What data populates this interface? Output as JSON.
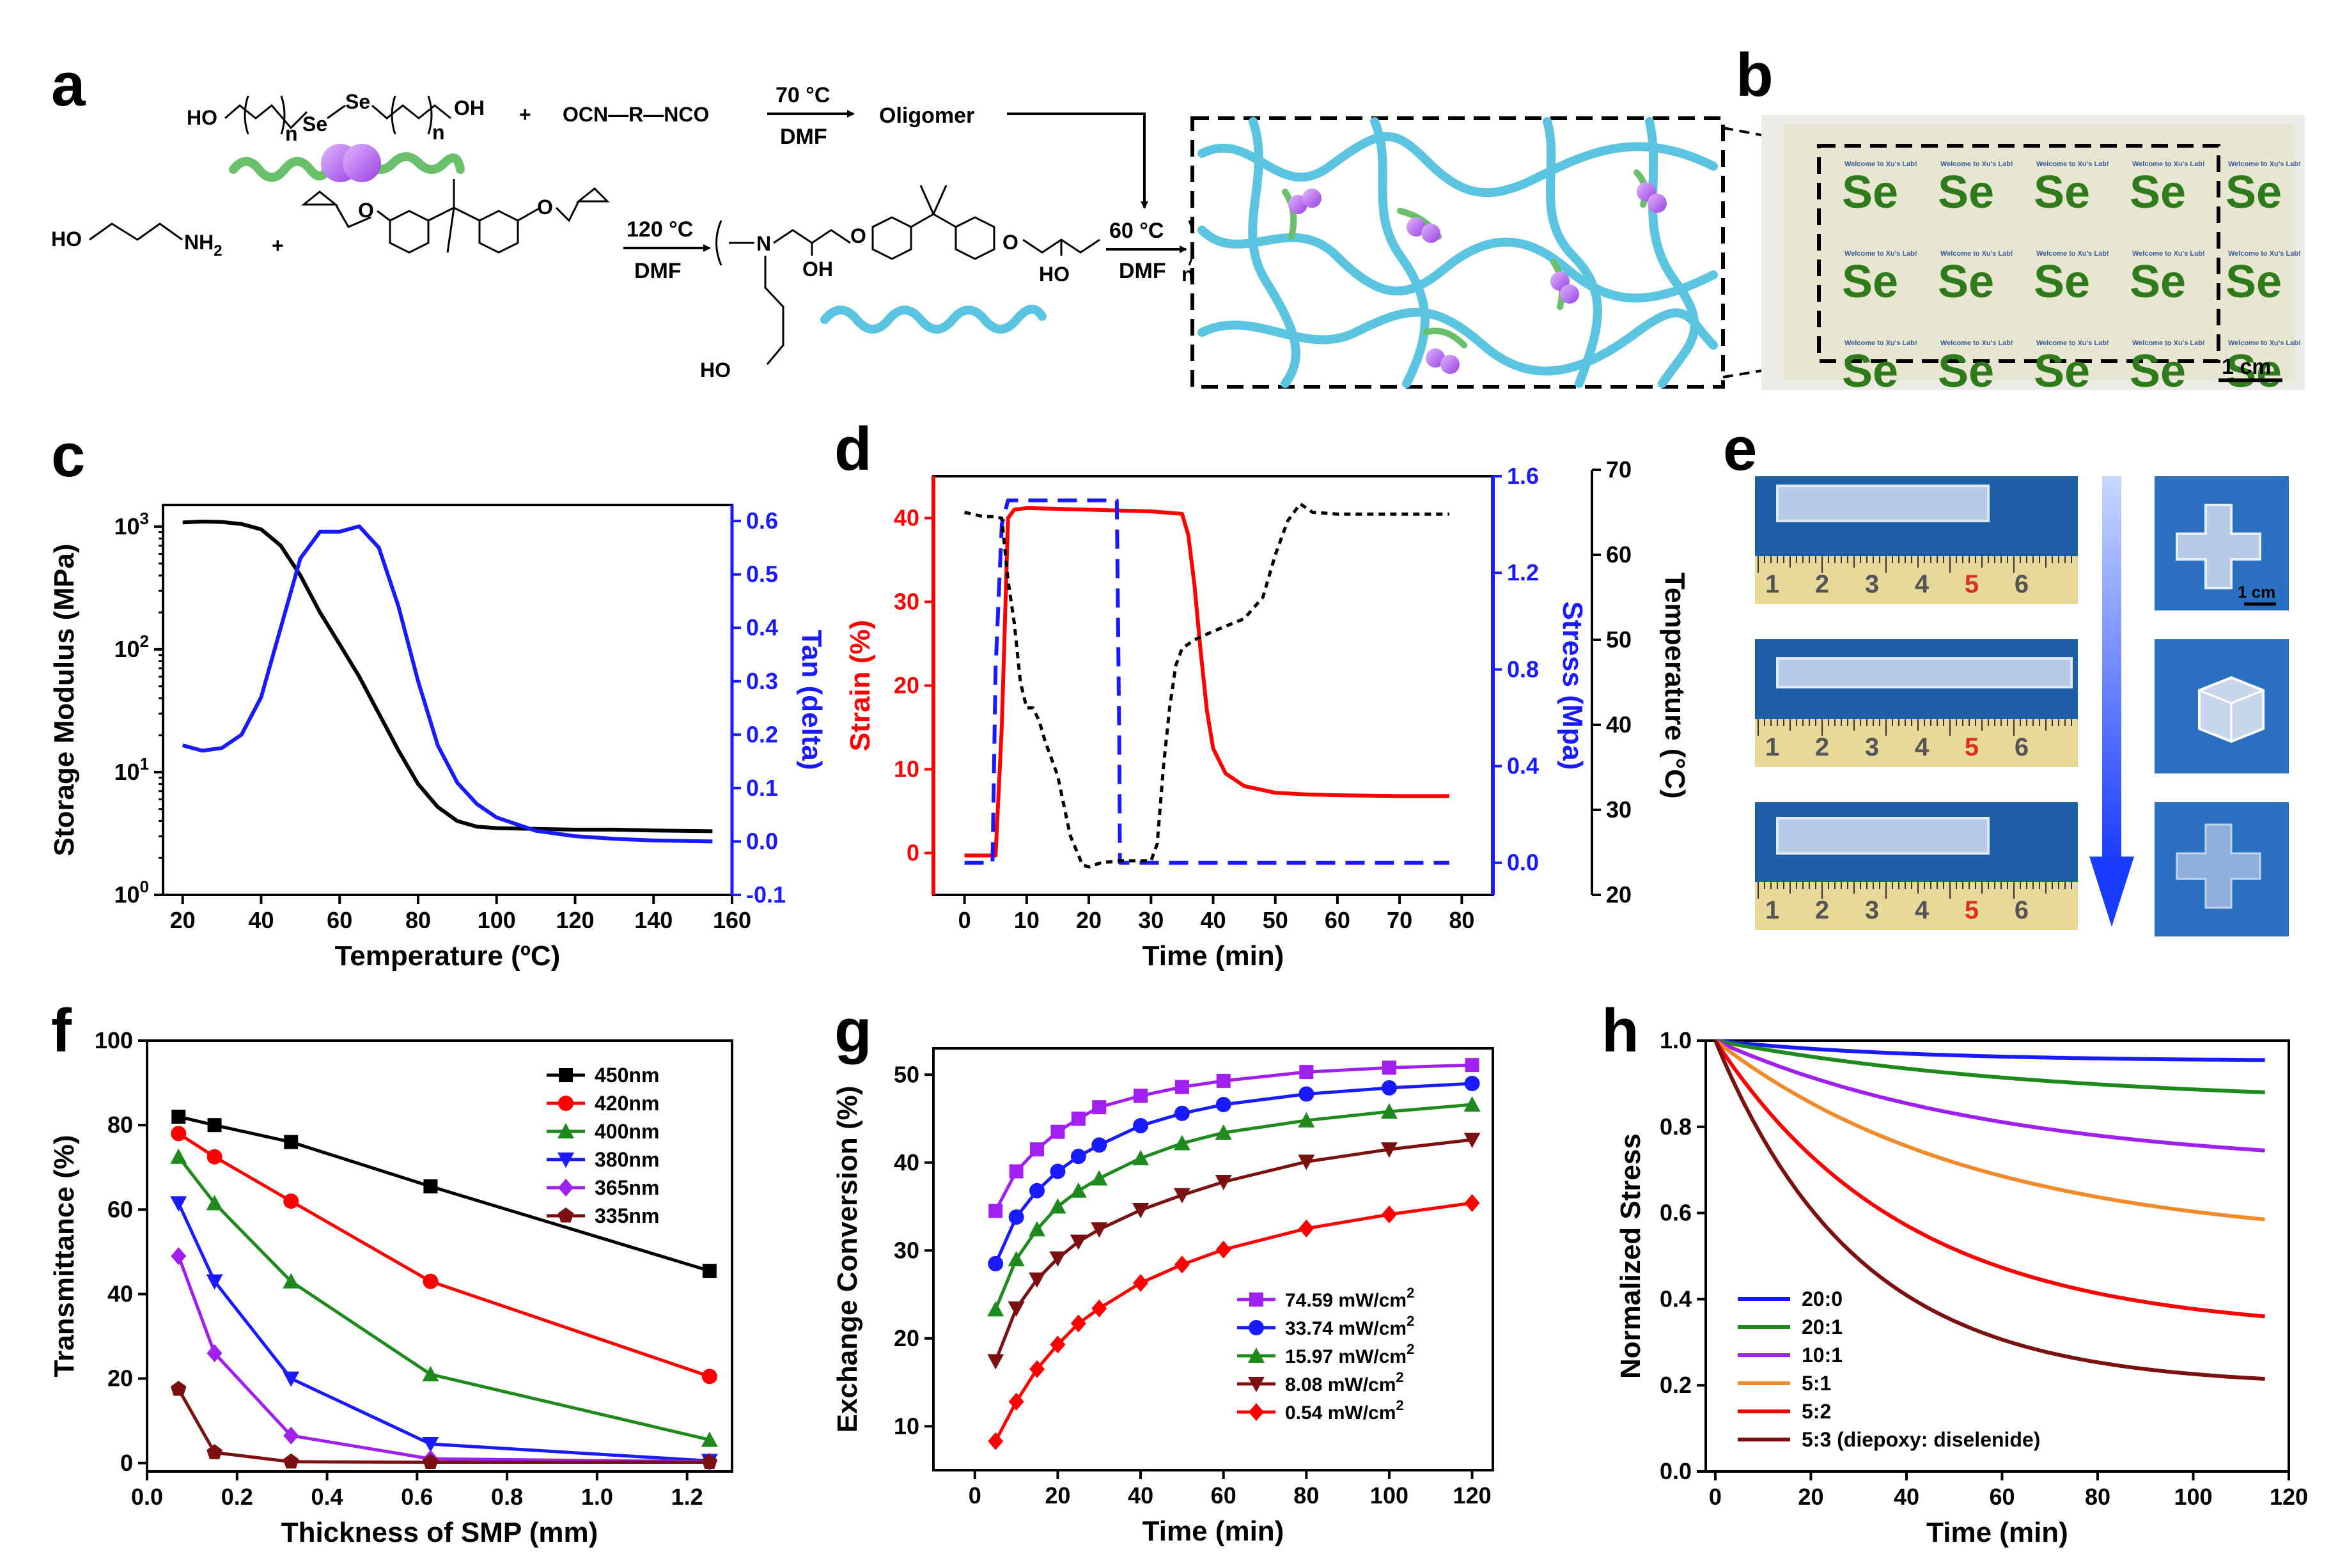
{
  "panels": {
    "a": "a",
    "b": "b",
    "c": "c",
    "d": "d",
    "e": "e",
    "f": "f",
    "g": "g",
    "h": "h"
  },
  "scheme": {
    "diol_left": "HO",
    "diol_n1": "n",
    "diol_se1": "Se",
    "diol_se2": "Se",
    "diol_n2": "n",
    "diol_right": "OH",
    "plus1": "+",
    "isocyanate": "OCN—R—NCO",
    "cond1_temp": "70 °C",
    "cond1_solv": "DMF",
    "oligomer": "Oligomer",
    "amine_ho": "HO",
    "amine_nh2": "NH",
    "amine_sub": "2",
    "plus2": "+",
    "cond2_temp": "120 °C",
    "cond2_solv": "DMF",
    "poly_n_atom": "N",
    "poly_oh1": "OH",
    "poly_oh2": "HO",
    "poly_ho_tail": "HO",
    "poly_n": "n",
    "cond3_temp": "60 °C",
    "cond3_solv": "DMF"
  },
  "photo_b": {
    "label_text": "Welcome to Xu's Lab!",
    "logo_text": "Se",
    "scale": "1 cm"
  },
  "photo_e": {
    "ruler_digits": [
      "1",
      "2",
      "3",
      "4",
      "5",
      "6"
    ],
    "scale": "1 cm"
  },
  "colors": {
    "black": "#000000",
    "red": "#ff0000",
    "blue": "#1a1aff",
    "green": "#1e8a1e",
    "purple": "#a020f0",
    "orange": "#f08a2a",
    "brown": "#7a1010",
    "network": "#5bc4e0",
    "crosslink": "#6ac06a",
    "sphere": "#b66ee8"
  },
  "chart_data": [
    {
      "id": "c",
      "type": "line",
      "xlabel": "Temperature (ºC)",
      "ylabel": "Storage Modulus (MPa)",
      "y2label": "Tan (delta)",
      "xlim": [
        15,
        160
      ],
      "xticks": [
        "20",
        "40",
        "60",
        "80",
        "100",
        "120",
        "140",
        "160"
      ],
      "yscale": "log",
      "ylim": [
        1,
        1500
      ],
      "yticks": [
        {
          "base": "10",
          "exp": "0"
        },
        {
          "base": "10",
          "exp": "1"
        },
        {
          "base": "10",
          "exp": "2"
        },
        {
          "base": "10",
          "exp": "3"
        }
      ],
      "y2lim": [
        -0.1,
        0.63
      ],
      "y2ticks": [
        "-0.1",
        "0.0",
        "0.1",
        "0.2",
        "0.3",
        "0.4",
        "0.5",
        "0.6"
      ],
      "series": [
        {
          "axis": "y",
          "color": "black",
          "x": [
            20,
            25,
            30,
            35,
            40,
            45,
            50,
            55,
            60,
            65,
            70,
            75,
            80,
            85,
            90,
            95,
            100,
            110,
            120,
            130,
            140,
            155
          ],
          "y": [
            1080,
            1100,
            1090,
            1050,
            950,
            700,
            400,
            200,
            110,
            60,
            30,
            15,
            8,
            5.2,
            4.0,
            3.6,
            3.5,
            3.45,
            3.4,
            3.4,
            3.35,
            3.3
          ]
        },
        {
          "axis": "y2",
          "color": "blue",
          "x": [
            20,
            25,
            30,
            35,
            40,
            45,
            50,
            55,
            60,
            65,
            70,
            75,
            80,
            85,
            90,
            95,
            100,
            110,
            120,
            130,
            140,
            155
          ],
          "y": [
            0.18,
            0.17,
            0.175,
            0.2,
            0.27,
            0.4,
            0.53,
            0.58,
            0.58,
            0.59,
            0.55,
            0.44,
            0.3,
            0.18,
            0.11,
            0.07,
            0.045,
            0.02,
            0.01,
            0.005,
            0.002,
            0.0
          ]
        }
      ]
    },
    {
      "id": "d",
      "type": "line",
      "xlabel": "Time (min)",
      "ylabel": "Strain (%)",
      "y2label": "Stress (Mpa)",
      "y3label": "Temperature (°C)",
      "xlim": [
        -5,
        85
      ],
      "xticks": [
        "0",
        "10",
        "20",
        "30",
        "40",
        "50",
        "60",
        "70",
        "80"
      ],
      "ylim": [
        -5,
        45
      ],
      "yticks": [
        "0",
        "10",
        "20",
        "30",
        "40"
      ],
      "y2lim": [
        -0.133,
        1.6
      ],
      "y2ticks": [
        "0.0",
        "0.4",
        "0.8",
        "1.2",
        "1.6"
      ],
      "y3lim": [
        20,
        70
      ],
      "y3ticks": [
        "20",
        "30",
        "40",
        "50",
        "60",
        "70"
      ],
      "series": [
        {
          "axis": "y",
          "color": "red",
          "style": "solid",
          "x": [
            0,
            5,
            6,
            7,
            8,
            10,
            15,
            20,
            25,
            30,
            35,
            36,
            37,
            38,
            39,
            40,
            42,
            45,
            50,
            55,
            60,
            70,
            78
          ],
          "y": [
            -0.3,
            -0.3,
            15,
            40,
            41,
            41.2,
            41.1,
            41,
            40.9,
            40.8,
            40.5,
            38,
            32,
            24,
            17,
            12.5,
            9.5,
            8,
            7.2,
            7,
            6.9,
            6.8,
            6.8
          ]
        },
        {
          "axis": "y2",
          "color": "blue",
          "style": "dashed",
          "x": [
            0,
            4.5,
            5,
            6,
            7,
            10,
            20,
            24.5,
            24.9,
            25,
            30,
            40,
            50,
            60,
            70,
            78
          ],
          "y": [
            0,
            0,
            0.8,
            1.4,
            1.5,
            1.5,
            1.5,
            1.5,
            0.5,
            0,
            0,
            0,
            0,
            0,
            0,
            0
          ]
        },
        {
          "axis": "y3",
          "color": "black",
          "style": "dotted",
          "x": [
            0,
            3,
            5,
            6,
            7,
            8,
            9,
            10,
            11,
            12,
            13,
            15,
            17,
            19,
            20,
            22,
            25,
            28,
            30,
            31,
            32,
            33,
            34,
            35,
            37,
            40,
            45,
            48,
            50,
            52,
            54,
            56,
            60,
            70,
            78
          ],
          "y": [
            65,
            64.5,
            64.5,
            64.3,
            57,
            52,
            45,
            42,
            42,
            40.5,
            38,
            34,
            27,
            23.5,
            23.3,
            23.8,
            24,
            24,
            24,
            26,
            35,
            42,
            47,
            49,
            50,
            51,
            52.5,
            55,
            60,
            64,
            66,
            65,
            64.8,
            64.8,
            64.8
          ]
        }
      ]
    },
    {
      "id": "f",
      "type": "line",
      "xlabel": "Thickness of SMP (mm)",
      "ylabel": "Transmittance (%)",
      "xlim": [
        0,
        1.3
      ],
      "xticks": [
        "0.0",
        "0.2",
        "0.4",
        "0.6",
        "0.8",
        "1.0",
        "1.2"
      ],
      "ylim": [
        -2,
        100
      ],
      "yticks": [
        "0",
        "20",
        "40",
        "60",
        "80",
        "100"
      ],
      "x": [
        0.07,
        0.15,
        0.32,
        0.63,
        1.25
      ],
      "series": [
        {
          "name": "450nm",
          "color": "black",
          "marker": "square",
          "values": [
            82,
            80,
            76,
            65.5,
            45.5
          ]
        },
        {
          "name": "420nm",
          "color": "red",
          "marker": "circle",
          "values": [
            78,
            72.5,
            62,
            43,
            20.5
          ]
        },
        {
          "name": "400nm",
          "color": "green",
          "marker": "triangle-up",
          "values": [
            72.5,
            61.5,
            43,
            21,
            5.5
          ]
        },
        {
          "name": "380nm",
          "color": "blue",
          "marker": "triangle-down",
          "values": [
            61.5,
            43,
            20,
            4.5,
            0.5
          ]
        },
        {
          "name": "365nm",
          "color": "purple",
          "marker": "diamond",
          "values": [
            49,
            26,
            6.5,
            1,
            0.3
          ]
        },
        {
          "name": "335nm",
          "color": "brown",
          "marker": "pentagon",
          "values": [
            17.5,
            2.5,
            0.3,
            0.2,
            0.2
          ]
        }
      ]
    },
    {
      "id": "g",
      "type": "line",
      "xlabel": "Time (min)",
      "ylabel": "Exchange Conversion (%)",
      "xlim": [
        -10,
        125
      ],
      "xticks": [
        "0",
        "20",
        "40",
        "60",
        "80",
        "100",
        "120"
      ],
      "ylim": [
        5,
        53
      ],
      "yticks": [
        "10",
        "20",
        "30",
        "40",
        "50"
      ],
      "x": [
        5,
        10,
        15,
        20,
        25,
        30,
        40,
        50,
        60,
        80,
        100,
        120
      ],
      "series": [
        {
          "name": "74.59 mW/cm",
          "name_sup": "2",
          "color": "purple",
          "marker": "square",
          "values": [
            34.5,
            39,
            41.5,
            43.5,
            45,
            46.3,
            47.6,
            48.6,
            49.3,
            50.3,
            50.8,
            51.1
          ]
        },
        {
          "name": "33.74 mW/cm",
          "name_sup": "2",
          "color": "blue",
          "marker": "circle",
          "values": [
            28.5,
            33.8,
            36.8,
            39,
            40.7,
            42,
            44.2,
            45.6,
            46.6,
            47.8,
            48.5,
            49
          ]
        },
        {
          "name": "15.97 mW/cm",
          "name_sup": "2",
          "color": "green",
          "marker": "triangle-up",
          "values": [
            23.3,
            29,
            32.4,
            35,
            36.8,
            38.2,
            40.5,
            42.2,
            43.4,
            44.8,
            45.8,
            46.6
          ]
        },
        {
          "name": "8.08 mW/cm",
          "name_sup": "2",
          "color": "brown",
          "marker": "triangle-down",
          "values": [
            17.4,
            23.4,
            26.7,
            29.1,
            31,
            32.4,
            34.6,
            36.3,
            37.8,
            40.1,
            41.5,
            42.6
          ]
        },
        {
          "name": "0.54 mW/cm",
          "name_sup": "2",
          "color": "red",
          "marker": "diamond",
          "values": [
            8.3,
            12.8,
            16.5,
            19.3,
            21.7,
            23.4,
            26.3,
            28.4,
            30.1,
            32.5,
            34.1,
            35.4
          ]
        }
      ]
    },
    {
      "id": "h",
      "type": "line",
      "xlabel": "Time (min)",
      "ylabel": "Normalized Stress",
      "xlim": [
        -2,
        120
      ],
      "xticks": [
        "0",
        "20",
        "40",
        "60",
        "80",
        "100",
        "120"
      ],
      "ylim": [
        0.0,
        1.0
      ],
      "yticks": [
        "0.0",
        "0.2",
        "0.4",
        "0.6",
        "0.8",
        "1.0"
      ],
      "x_end": 115,
      "series": [
        {
          "name": "20:0",
          "color": "blue",
          "end": 0.955,
          "tau": 40
        },
        {
          "name": "20:1",
          "color": "green",
          "end": 0.88,
          "tau": 70
        },
        {
          "name": "10:1",
          "color": "purple",
          "end": 0.745,
          "tau": 60
        },
        {
          "name": "5:1",
          "color": "orange",
          "end": 0.585,
          "tau": 55
        },
        {
          "name": "5:2",
          "color": "red",
          "end": 0.36,
          "tau": 40
        },
        {
          "name": "5:3 (diepoxy: diselenide)",
          "color": "brown",
          "end": 0.215,
          "tau": 30
        }
      ]
    }
  ]
}
